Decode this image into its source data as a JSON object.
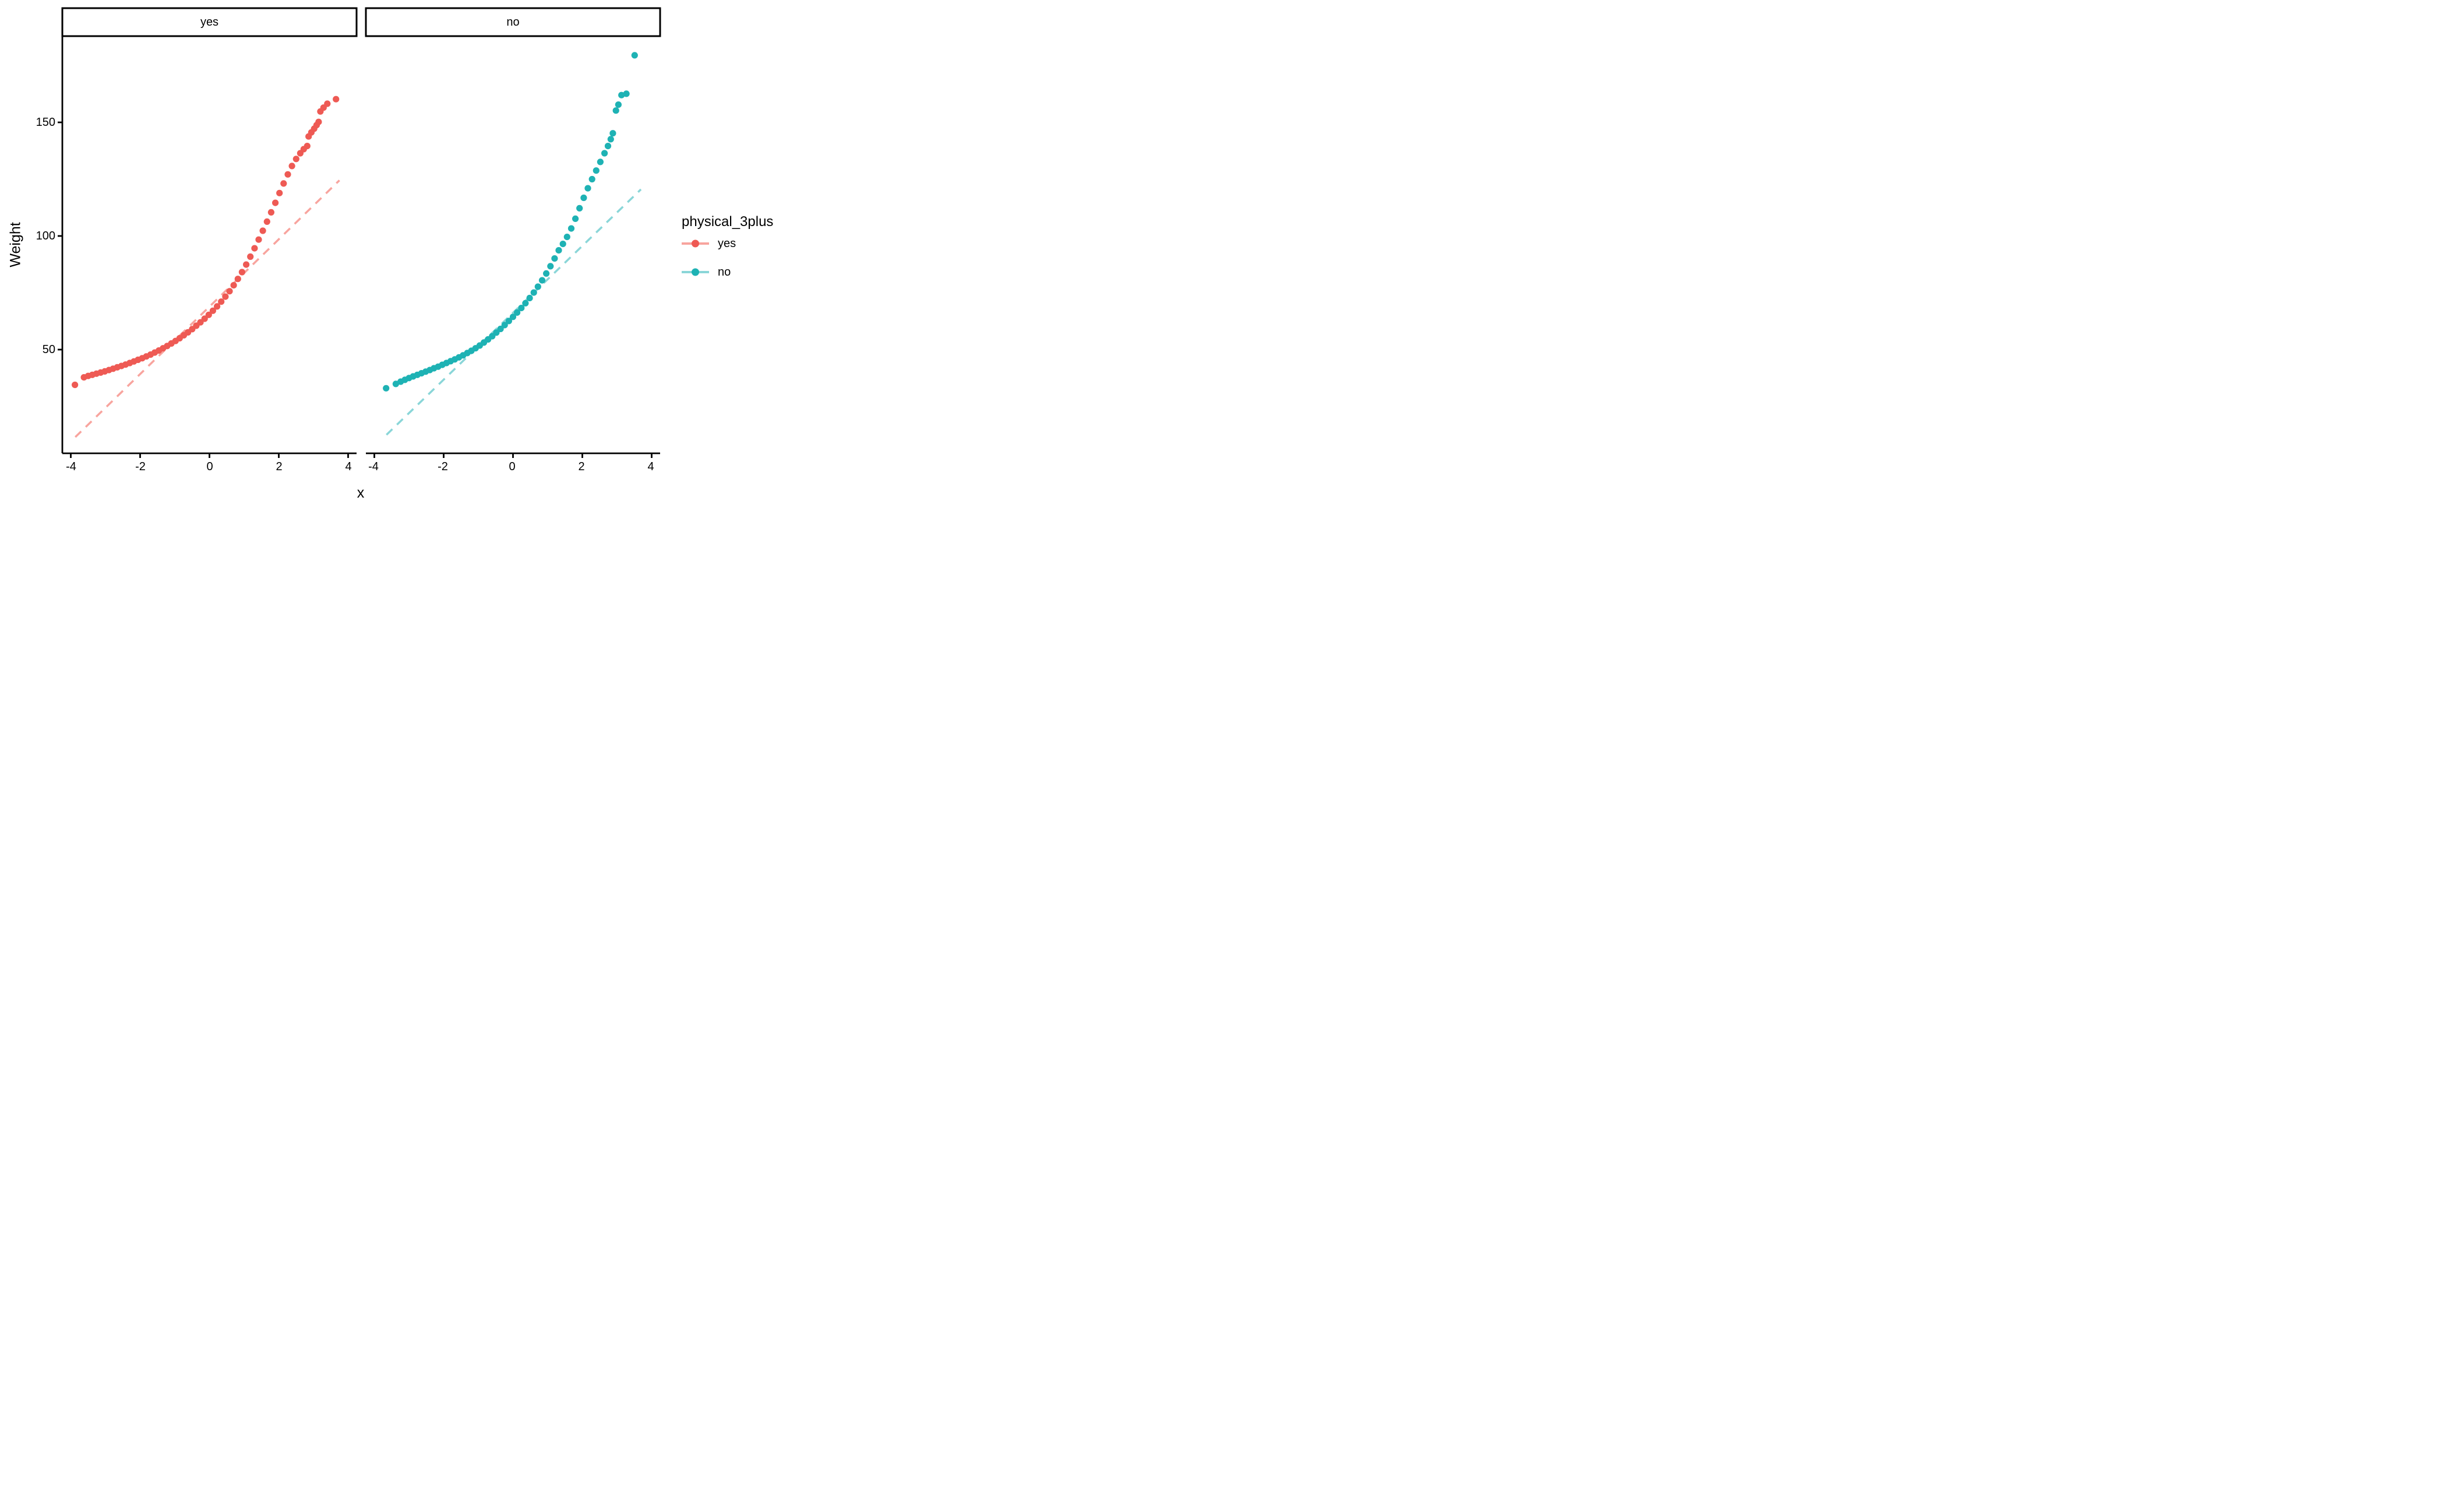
{
  "chart_data": {
    "type": "scatter",
    "subtype": "qq-plot-faceted",
    "title": "",
    "xlabel": "x",
    "ylabel": "Weight",
    "x_tick_labels": [
      "-4",
      "-2",
      "0",
      "2",
      "4"
    ],
    "x_tick_values": [
      -4,
      -2,
      0,
      2,
      4
    ],
    "y_tick_labels": [
      "150",
      "100",
      "50"
    ],
    "y_tick_values": [
      150,
      100,
      50
    ],
    "xlim": [
      -4.25,
      4.25
    ],
    "ylim": [
      4,
      188
    ],
    "grid": "off",
    "legend_position": "right",
    "facet_variable": "physical_3plus",
    "facets": [
      {
        "label": "yes",
        "point_color": "#EE5A54",
        "line_color": "#F8A49E",
        "qq_line": {
          "x1": -3.87,
          "y1": 11.5,
          "x2": 3.75,
          "y2": 124.5
        },
        "points": [
          [
            -3.88,
            34.5
          ],
          [
            -3.62,
            37.8
          ],
          [
            -3.5,
            38.4
          ],
          [
            -3.38,
            38.9
          ],
          [
            -3.26,
            39.4
          ],
          [
            -3.14,
            39.9
          ],
          [
            -3.02,
            40.4
          ],
          [
            -2.9,
            41.0
          ],
          [
            -2.78,
            41.6
          ],
          [
            -2.66,
            42.2
          ],
          [
            -2.54,
            42.8
          ],
          [
            -2.42,
            43.4
          ],
          [
            -2.3,
            44.1
          ],
          [
            -2.18,
            44.8
          ],
          [
            -2.06,
            45.5
          ],
          [
            -1.94,
            46.2
          ],
          [
            -1.82,
            47.0
          ],
          [
            -1.7,
            47.8
          ],
          [
            -1.58,
            48.7
          ],
          [
            -1.46,
            49.6
          ],
          [
            -1.34,
            50.6
          ],
          [
            -1.22,
            51.6
          ],
          [
            -1.1,
            52.7
          ],
          [
            -0.98,
            53.8
          ],
          [
            -0.86,
            55.0
          ],
          [
            -0.74,
            56.3
          ],
          [
            -0.62,
            57.6
          ],
          [
            -0.5,
            59.0
          ],
          [
            -0.38,
            60.5
          ],
          [
            -0.26,
            62.0
          ],
          [
            -0.14,
            63.6
          ],
          [
            -0.02,
            65.3
          ],
          [
            0.1,
            67.1
          ],
          [
            0.22,
            69.0
          ],
          [
            0.34,
            71.1
          ],
          [
            0.46,
            73.3
          ],
          [
            0.58,
            75.7
          ],
          [
            0.7,
            78.3
          ],
          [
            0.82,
            81.1
          ],
          [
            0.94,
            84.1
          ],
          [
            1.06,
            87.4
          ],
          [
            1.18,
            90.9
          ],
          [
            1.3,
            94.6
          ],
          [
            1.42,
            98.4
          ],
          [
            1.54,
            102.3
          ],
          [
            1.66,
            106.3
          ],
          [
            1.78,
            110.4
          ],
          [
            1.9,
            114.6
          ],
          [
            2.02,
            118.9
          ],
          [
            2.14,
            123.1
          ],
          [
            2.26,
            127.1
          ],
          [
            2.38,
            130.8
          ],
          [
            2.5,
            133.9
          ],
          [
            2.62,
            136.4
          ],
          [
            2.72,
            138.2
          ],
          [
            2.82,
            139.6
          ],
          [
            2.86,
            143.8
          ],
          [
            2.94,
            145.6
          ],
          [
            3.02,
            147.2
          ],
          [
            3.09,
            148.8
          ],
          [
            3.15,
            150.2
          ],
          [
            3.2,
            154.8
          ],
          [
            3.29,
            156.5
          ],
          [
            3.4,
            158.2
          ],
          [
            3.65,
            160.2
          ]
        ]
      },
      {
        "label": "no",
        "point_color": "#1EB2B4",
        "line_color": "#8AD6D8",
        "qq_line": {
          "x1": -3.65,
          "y1": 12.5,
          "x2": 3.69,
          "y2": 120.5
        },
        "points": [
          [
            -3.66,
            33.0
          ],
          [
            -3.38,
            34.9
          ],
          [
            -3.24,
            35.9
          ],
          [
            -3.12,
            36.7
          ],
          [
            -3.0,
            37.5
          ],
          [
            -2.88,
            38.2
          ],
          [
            -2.76,
            38.9
          ],
          [
            -2.64,
            39.6
          ],
          [
            -2.52,
            40.3
          ],
          [
            -2.4,
            41.0
          ],
          [
            -2.28,
            41.8
          ],
          [
            -2.16,
            42.5
          ],
          [
            -2.04,
            43.3
          ],
          [
            -1.92,
            44.1
          ],
          [
            -1.8,
            44.9
          ],
          [
            -1.68,
            45.7
          ],
          [
            -1.56,
            46.6
          ],
          [
            -1.44,
            47.5
          ],
          [
            -1.32,
            48.5
          ],
          [
            -1.2,
            49.5
          ],
          [
            -1.08,
            50.6
          ],
          [
            -0.96,
            51.8
          ],
          [
            -0.84,
            53.1
          ],
          [
            -0.72,
            54.5
          ],
          [
            -0.6,
            55.9
          ],
          [
            -0.48,
            57.5
          ],
          [
            -0.36,
            59.1
          ],
          [
            -0.24,
            60.8
          ],
          [
            -0.12,
            62.6
          ],
          [
            0.0,
            64.4
          ],
          [
            0.12,
            66.3
          ],
          [
            0.24,
            68.3
          ],
          [
            0.36,
            70.4
          ],
          [
            0.48,
            72.7
          ],
          [
            0.6,
            75.1
          ],
          [
            0.72,
            77.7
          ],
          [
            0.84,
            80.5
          ],
          [
            0.96,
            83.5
          ],
          [
            1.08,
            86.7
          ],
          [
            1.2,
            90.1
          ],
          [
            1.32,
            93.7
          ],
          [
            1.44,
            96.5
          ],
          [
            1.56,
            99.6
          ],
          [
            1.68,
            103.3
          ],
          [
            1.8,
            107.6
          ],
          [
            1.92,
            112.2
          ],
          [
            2.04,
            116.8
          ],
          [
            2.16,
            121.0
          ],
          [
            2.28,
            125.0
          ],
          [
            2.4,
            128.8
          ],
          [
            2.52,
            132.6
          ],
          [
            2.64,
            136.4
          ],
          [
            2.74,
            139.6
          ],
          [
            2.82,
            142.6
          ],
          [
            2.88,
            145.2
          ],
          [
            2.97,
            155.2
          ],
          [
            3.04,
            157.8
          ],
          [
            3.13,
            162.0
          ],
          [
            3.27,
            162.6
          ],
          [
            3.51,
            179.5
          ]
        ]
      }
    ],
    "legend": {
      "title": "physical_3plus",
      "entries": [
        {
          "label": "yes",
          "color": "#EE5A54",
          "line_color": "#F8A49E"
        },
        {
          "label": "no",
          "color": "#1EB2B4",
          "line_color": "#8AD6D8"
        }
      ]
    }
  },
  "colors": {
    "background": "#FFFFFF",
    "axis": "#000000",
    "strip_border": "#000000",
    "strip_fill": "#FFFFFF",
    "text": "#000000"
  }
}
